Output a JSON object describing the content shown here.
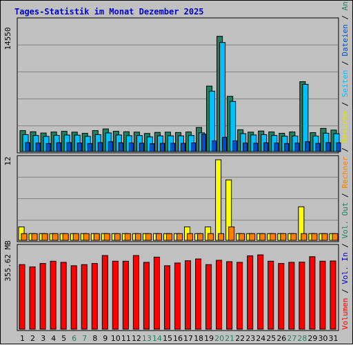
{
  "title": "Tages-Statistik im Monat Dezember 2025",
  "colors": {
    "background": "#c0c0c0",
    "plot_bg": "#c0c0c0",
    "title": "#0000cc",
    "hits": "#208060",
    "files": "#00c0ff",
    "pages": "#0050c8",
    "visits": "#ffff00",
    "hosts": "#ff8000",
    "volume": "#ff0000",
    "weekend_label": "#208060",
    "weekday_label": "#000000",
    "gridline": "#808080"
  },
  "chart_data": [
    {
      "type": "bar",
      "panel": "top",
      "ylabel_value": "14550",
      "ylim": [
        0,
        14550
      ],
      "grid": true,
      "categories": [
        "1",
        "2",
        "3",
        "4",
        "5",
        "6",
        "7",
        "8",
        "9",
        "10",
        "11",
        "12",
        "13",
        "14",
        "15",
        "16",
        "17",
        "18",
        "19",
        "20",
        "21",
        "22",
        "23",
        "24",
        "25",
        "26",
        "27",
        "28",
        "29",
        "30",
        "31"
      ],
      "series": [
        {
          "name": "Anfragen",
          "color": "#208060",
          "values": [
            2350,
            2220,
            2080,
            2190,
            2270,
            2180,
            2040,
            2350,
            2540,
            2270,
            2220,
            2180,
            2030,
            2150,
            2180,
            2140,
            2200,
            2700,
            7350,
            12950,
            6200,
            2450,
            2180,
            2300,
            2200,
            2050,
            2200,
            7850,
            2120,
            2600,
            2410
          ]
        },
        {
          "name": "Dateien",
          "color": "#00c0ff",
          "values": [
            1900,
            1800,
            1700,
            1820,
            1850,
            1840,
            1700,
            1900,
            2090,
            1860,
            1780,
            1800,
            1640,
            1760,
            1760,
            1760,
            1800,
            2100,
            6780,
            12250,
            5630,
            2010,
            1860,
            1900,
            1800,
            1720,
            1740,
            7550,
            1740,
            2060,
            2000
          ]
        },
        {
          "name": "Seiten",
          "color": "#0050c8",
          "values": [
            1000,
            950,
            900,
            980,
            1000,
            960,
            900,
            1000,
            1100,
            980,
            960,
            940,
            880,
            920,
            930,
            920,
            960,
            1950,
            1200,
            1600,
            1200,
            950,
            930,
            980,
            950,
            900,
            940,
            1100,
            920,
            1000,
            980
          ]
        }
      ]
    },
    {
      "type": "bar",
      "panel": "middle",
      "ylabel_value": "12",
      "ylim": [
        0,
        12
      ],
      "grid": true,
      "categories": [
        "1",
        "2",
        "3",
        "4",
        "5",
        "6",
        "7",
        "8",
        "9",
        "10",
        "11",
        "12",
        "13",
        "14",
        "15",
        "16",
        "17",
        "18",
        "19",
        "20",
        "21",
        "22",
        "23",
        "24",
        "25",
        "26",
        "27",
        "28",
        "29",
        "30",
        "31"
      ],
      "series": [
        {
          "name": "Besuche",
          "color": "#ffff00",
          "values": [
            2,
            1,
            1,
            1,
            1,
            1,
            1,
            1,
            1,
            1,
            1,
            1,
            1,
            1,
            1,
            1,
            2,
            1,
            2,
            12,
            9,
            1,
            1,
            1,
            1,
            1,
            1,
            5,
            1,
            1,
            1
          ]
        },
        {
          "name": "Rechner",
          "color": "#ff8000",
          "values": [
            1,
            1,
            1,
            1,
            1,
            1,
            1,
            1,
            1,
            1,
            1,
            1,
            1,
            1,
            1,
            1,
            1,
            1,
            1,
            1,
            2,
            1,
            1,
            1,
            1,
            1,
            1,
            1,
            1,
            1,
            1
          ]
        }
      ]
    },
    {
      "type": "bar",
      "panel": "bottom",
      "ylabel_value": "355.62 MB",
      "ylim": [
        0,
        355.62
      ],
      "grid": false,
      "categories": [
        "1",
        "2",
        "3",
        "4",
        "5",
        "6",
        "7",
        "8",
        "9",
        "10",
        "11",
        "12",
        "13",
        "14",
        "15",
        "16",
        "17",
        "18",
        "19",
        "20",
        "21",
        "22",
        "23",
        "24",
        "25",
        "26",
        "27",
        "28",
        "29",
        "30",
        "31"
      ],
      "series": [
        {
          "name": "Volumen",
          "color": "#ff0000",
          "values": [
            285,
            275,
            290,
            300,
            295,
            280,
            285,
            290,
            325,
            300,
            300,
            325,
            295,
            318,
            280,
            292,
            302,
            310,
            285,
            304,
            298,
            295,
            324,
            328,
            300,
            290,
            295,
            296,
            320,
            300,
            301
          ]
        }
      ]
    }
  ],
  "right_legend": {
    "top": [
      {
        "text": "Anfragen",
        "color": "#208060"
      },
      {
        "text": " / ",
        "color": "#000000"
      },
      {
        "text": "Dateien",
        "color": "#0050c8"
      },
      {
        "text": " / ",
        "color": "#000000"
      },
      {
        "text": "Seiten",
        "color": "#00c0ff"
      },
      {
        "text": " / ",
        "color": "#000000"
      },
      {
        "text": "Besuche",
        "color": "#e0e000"
      }
    ],
    "middle": [
      {
        "text": " / ",
        "color": "#000000"
      },
      {
        "text": "Rechner",
        "color": "#ff8000"
      },
      {
        "text": " / ",
        "color": "#000000"
      },
      {
        "text": "Vol. Out",
        "color": "#208060"
      },
      {
        "text": " / ",
        "color": "#000000"
      },
      {
        "text": "Vol. In",
        "color": "#0000cc"
      },
      {
        "text": " / ",
        "color": "#000000"
      },
      {
        "text": "Volumen",
        "color": "#ff0000"
      }
    ]
  },
  "weekend_days": [
    "6",
    "7",
    "13",
    "14",
    "20",
    "21",
    "27",
    "28"
  ]
}
